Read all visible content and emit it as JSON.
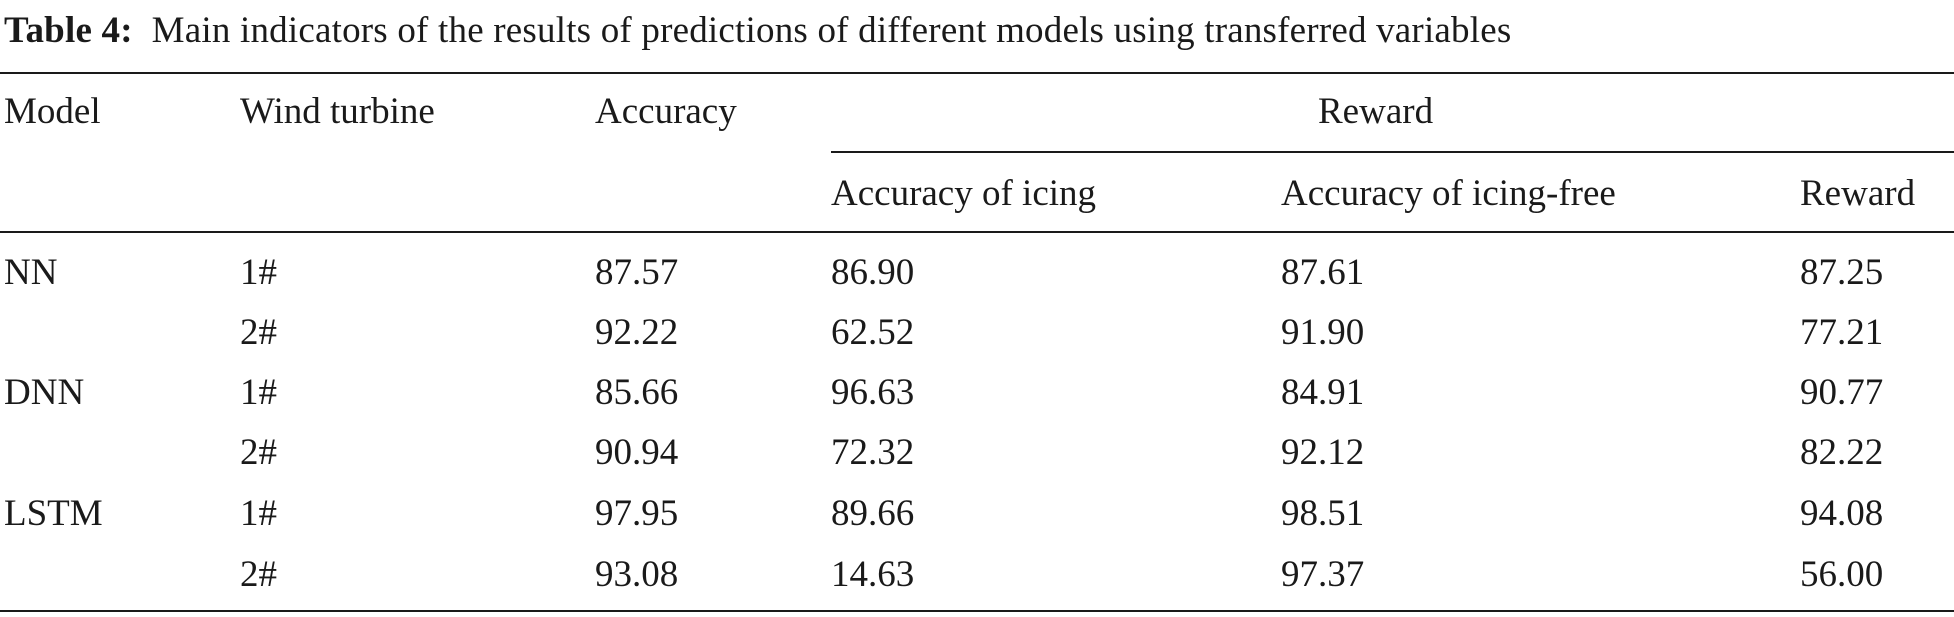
{
  "caption": {
    "label": "Table 4:",
    "text": "Main indicators of the results of predictions of different models using transferred variables"
  },
  "table": {
    "headers": {
      "model": "Model",
      "wind_turbine": "Wind turbine",
      "accuracy": "Accuracy",
      "reward_group": "Reward",
      "accuracy_of_icing": "Accuracy of icing",
      "accuracy_of_icing_free": "Accuracy of icing-free",
      "reward": "Reward"
    },
    "rows": [
      {
        "model": "NN",
        "turbine": "1#",
        "accuracy": "87.57",
        "icing": "86.90",
        "icing_free": "87.61",
        "reward": "87.25"
      },
      {
        "model": "",
        "turbine": "2#",
        "accuracy": "92.22",
        "icing": "62.52",
        "icing_free": "91.90",
        "reward": "77.21"
      },
      {
        "model": "DNN",
        "turbine": "1#",
        "accuracy": "85.66",
        "icing": "96.63",
        "icing_free": "84.91",
        "reward": "90.77"
      },
      {
        "model": "",
        "turbine": "2#",
        "accuracy": "90.94",
        "icing": "72.32",
        "icing_free": "92.12",
        "reward": "82.22"
      },
      {
        "model": "LSTM",
        "turbine": "1#",
        "accuracy": "97.95",
        "icing": "89.66",
        "icing_free": "98.51",
        "reward": "94.08"
      },
      {
        "model": "",
        "turbine": "2#",
        "accuracy": "93.08",
        "icing": "14.63",
        "icing_free": "97.37",
        "reward": "56.00"
      }
    ]
  }
}
